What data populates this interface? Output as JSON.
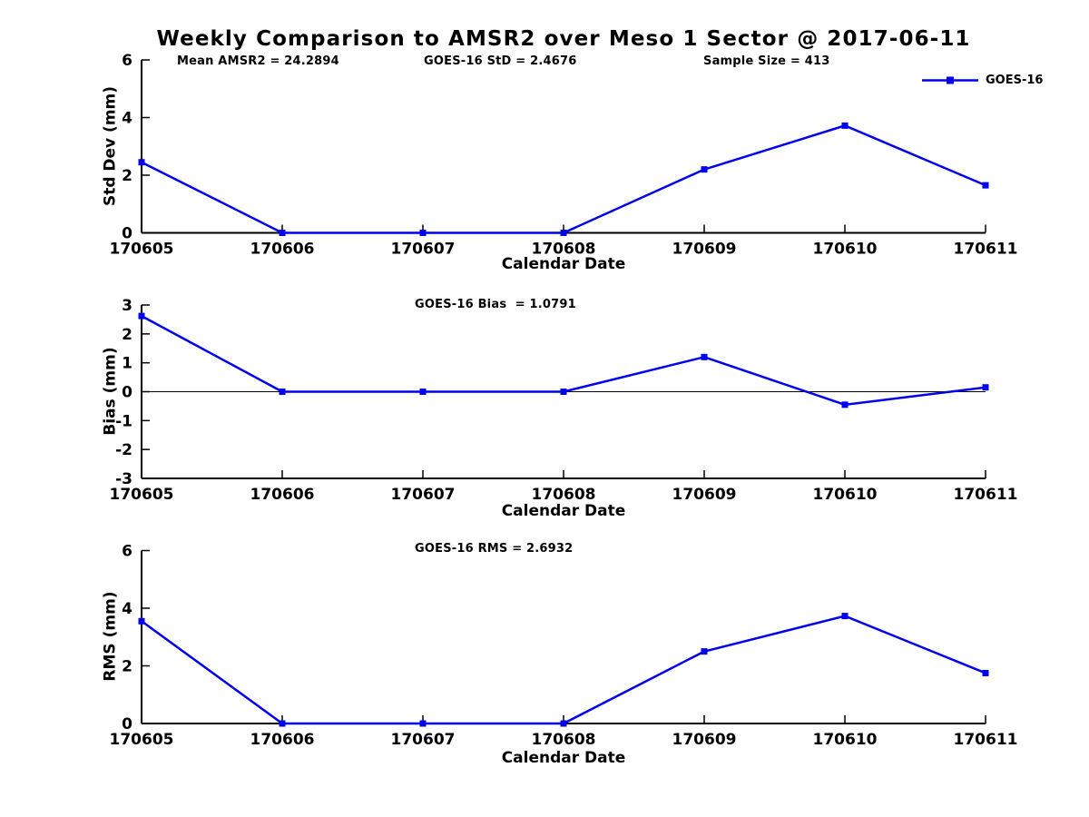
{
  "title": "Weekly Comparison to AMSR2 over Meso 1 Sector @ 2017-06-11",
  "colors": {
    "line": "#0000ee",
    "axis": "#000000",
    "text": "#000000",
    "background": "#ffffff"
  },
  "legend": {
    "label": "GOES-16",
    "position": "top-right"
  },
  "annotations": {
    "mean_amsr2": "Mean AMSR2 = 24.2894",
    "goes_std": "GOES-16 StD = 2.4676",
    "sample_size": "Sample Size = 413",
    "goes_bias": "GOES-16 Bias  = 1.0791",
    "goes_rms": "GOES-16 RMS = 2.6932"
  },
  "chart_data": [
    {
      "type": "line",
      "title": "Std Dev subplot",
      "categories": [
        "170605",
        "170606",
        "170607",
        "170608",
        "170609",
        "170610",
        "170611"
      ],
      "series": [
        {
          "name": "GOES-16",
          "values": [
            2.45,
            0,
            0,
            0,
            2.2,
            3.72,
            1.65
          ]
        }
      ],
      "xlabel": "Calendar Date",
      "ylabel": "Std Dev (mm)",
      "ylim": [
        0,
        6
      ],
      "yticks": [
        0,
        2,
        4,
        6
      ],
      "grid": false,
      "zero_line": false,
      "legend_position": "top-right"
    },
    {
      "type": "line",
      "title": "Bias subplot",
      "categories": [
        "170605",
        "170606",
        "170607",
        "170608",
        "170609",
        "170610",
        "170611"
      ],
      "series": [
        {
          "name": "GOES-16",
          "values": [
            2.62,
            0,
            0,
            0,
            1.2,
            -0.45,
            0.15
          ]
        }
      ],
      "xlabel": "Calendar Date",
      "ylabel": "Bias (mm)",
      "ylim": [
        -3,
        3
      ],
      "yticks": [
        -3,
        -2,
        -1,
        0,
        1,
        2,
        3
      ],
      "grid": false,
      "zero_line": true,
      "legend_position": "none"
    },
    {
      "type": "line",
      "title": "RMS subplot",
      "categories": [
        "170605",
        "170606",
        "170607",
        "170608",
        "170609",
        "170610",
        "170611"
      ],
      "series": [
        {
          "name": "GOES-16",
          "values": [
            3.55,
            0,
            0,
            0,
            2.5,
            3.73,
            1.75
          ]
        }
      ],
      "xlabel": "Calendar Date",
      "ylabel": "RMS (mm)",
      "ylim": [
        0,
        6
      ],
      "yticks": [
        0,
        2,
        4,
        6
      ],
      "grid": false,
      "zero_line": false,
      "legend_position": "none"
    }
  ]
}
